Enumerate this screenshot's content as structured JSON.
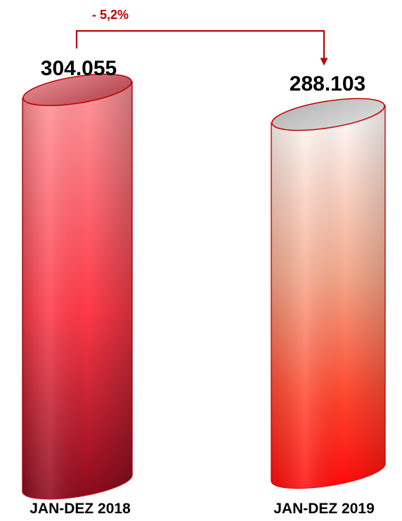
{
  "chart_data": {
    "type": "bar",
    "categories": [
      "JAN-DEZ 2018",
      "JAN-DEZ 2019"
    ],
    "values": [
      304055,
      288103
    ],
    "value_labels": [
      "304.055",
      "288.103"
    ],
    "change_label": "- 5,2%",
    "colors": {
      "accent": "#c00000",
      "bar_2018_light": "#ff9a9c",
      "bar_2018_dark": "#8a0a1c",
      "bar_2019_light": "#ffffff",
      "bar_2019_dark": "#ff1a1a"
    }
  }
}
